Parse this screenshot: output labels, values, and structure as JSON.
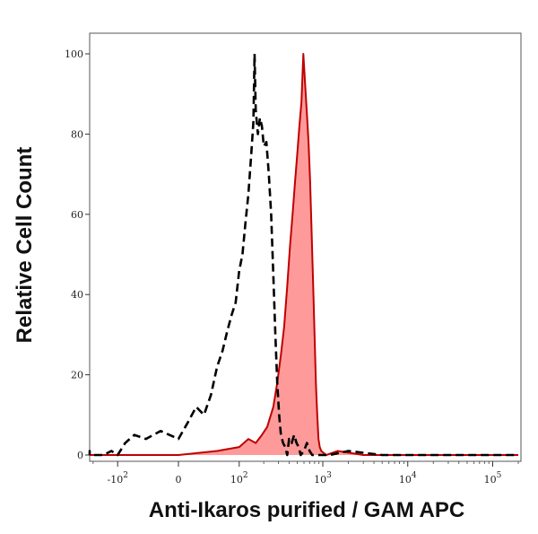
{
  "chart_data": {
    "type": "area",
    "title": "",
    "xlabel": "Anti-Ikaros purified / GAM APC",
    "ylabel": "Relative Cell Count",
    "x_scale": "biexponential",
    "xlim": [
      -400,
      200000
    ],
    "ylim": [
      0,
      105
    ],
    "grid": false,
    "y_ticks": [
      {
        "value": 0,
        "label": "0"
      },
      {
        "value": 20,
        "label": "20"
      },
      {
        "value": 40,
        "label": "40"
      },
      {
        "value": 60,
        "label": "60"
      },
      {
        "value": 80,
        "label": "80"
      },
      {
        "value": 100,
        "label": "100"
      }
    ],
    "x_ticks": [
      {
        "value": -100,
        "base": "-10",
        "exp": "2"
      },
      {
        "value": 0,
        "base": "0",
        "exp": ""
      },
      {
        "value": 100,
        "base": "10",
        "exp": "2"
      },
      {
        "value": 1000,
        "base": "10",
        "exp": "3"
      },
      {
        "value": 10000,
        "base": "10",
        "exp": "4"
      },
      {
        "value": 100000,
        "base": "10",
        "exp": "5"
      }
    ],
    "series": [
      {
        "style": "dashed",
        "color": "#000000",
        "points": [
          [
            -380,
            0
          ],
          [
            -300,
            1
          ],
          [
            -250,
            0
          ],
          [
            -150,
            0
          ],
          [
            -120,
            1
          ],
          [
            -100,
            0
          ],
          [
            -80,
            3
          ],
          [
            -60,
            5
          ],
          [
            -40,
            4
          ],
          [
            -20,
            6
          ],
          [
            0,
            4
          ],
          [
            10,
            8
          ],
          [
            20,
            12
          ],
          [
            30,
            10
          ],
          [
            40,
            15
          ],
          [
            50,
            22
          ],
          [
            60,
            26
          ],
          [
            70,
            31
          ],
          [
            80,
            35
          ],
          [
            90,
            38
          ],
          [
            100,
            46
          ],
          [
            110,
            50
          ],
          [
            120,
            58
          ],
          [
            130,
            65
          ],
          [
            140,
            74
          ],
          [
            150,
            83
          ],
          [
            155,
            100
          ],
          [
            160,
            86
          ],
          [
            170,
            80
          ],
          [
            180,
            84
          ],
          [
            190,
            82
          ],
          [
            200,
            77
          ],
          [
            215,
            78
          ],
          [
            230,
            70
          ],
          [
            245,
            60
          ],
          [
            260,
            45
          ],
          [
            275,
            30
          ],
          [
            290,
            18
          ],
          [
            305,
            10
          ],
          [
            320,
            5
          ],
          [
            340,
            3
          ],
          [
            360,
            2
          ],
          [
            380,
            0
          ],
          [
            400,
            4
          ],
          [
            430,
            3
          ],
          [
            460,
            5
          ],
          [
            490,
            3
          ],
          [
            520,
            2
          ],
          [
            550,
            0
          ],
          [
            600,
            1
          ],
          [
            650,
            3
          ],
          [
            700,
            1
          ],
          [
            750,
            0
          ],
          [
            1200,
            0
          ],
          [
            2000,
            1
          ],
          [
            5000,
            0
          ],
          [
            200000,
            0
          ]
        ]
      },
      {
        "style": "filled",
        "color": "#c00000",
        "fill": "#ff9a9a",
        "points": [
          [
            -400,
            0
          ],
          [
            -100,
            0
          ],
          [
            0,
            0
          ],
          [
            50,
            1
          ],
          [
            100,
            2
          ],
          [
            130,
            4
          ],
          [
            160,
            3
          ],
          [
            190,
            5
          ],
          [
            220,
            7
          ],
          [
            260,
            12
          ],
          [
            290,
            18
          ],
          [
            320,
            25
          ],
          [
            350,
            32
          ],
          [
            380,
            42
          ],
          [
            410,
            52
          ],
          [
            440,
            60
          ],
          [
            470,
            68
          ],
          [
            500,
            75
          ],
          [
            530,
            82
          ],
          [
            560,
            88
          ],
          [
            590,
            100
          ],
          [
            620,
            92
          ],
          [
            650,
            85
          ],
          [
            680,
            78
          ],
          [
            710,
            68
          ],
          [
            740,
            55
          ],
          [
            770,
            42
          ],
          [
            800,
            30
          ],
          [
            830,
            18
          ],
          [
            860,
            10
          ],
          [
            890,
            4
          ],
          [
            920,
            2
          ],
          [
            960,
            1
          ],
          [
            1100,
            0
          ],
          [
            1500,
            1
          ],
          [
            3000,
            0
          ],
          [
            200000,
            0
          ]
        ]
      }
    ]
  }
}
